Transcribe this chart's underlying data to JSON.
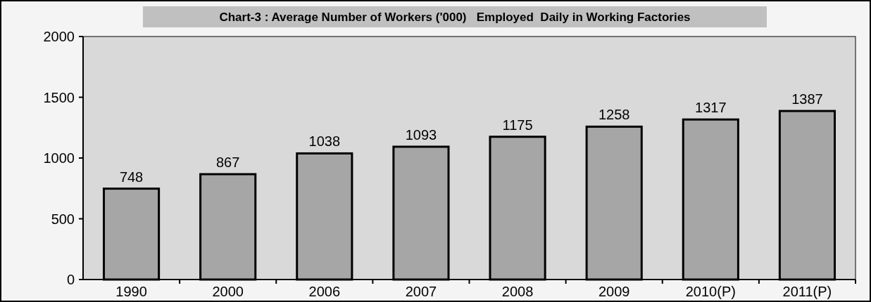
{
  "chart_data": {
    "type": "bar",
    "title": "Chart-3 : Average Number of Workers ('000)   Employed  Daily in Working Factories",
    "categories": [
      "1990",
      "2000",
      "2006",
      "2007",
      "2008",
      "2009",
      "2010(P)",
      "2011(P)"
    ],
    "values": [
      748,
      867,
      1038,
      1093,
      1175,
      1258,
      1317,
      1387
    ],
    "color": "#a6a6a6",
    "ylim": [
      0,
      2000
    ],
    "yticks": [
      0,
      500,
      1000,
      1500,
      2000
    ],
    "data_labels": true,
    "grid": false
  }
}
